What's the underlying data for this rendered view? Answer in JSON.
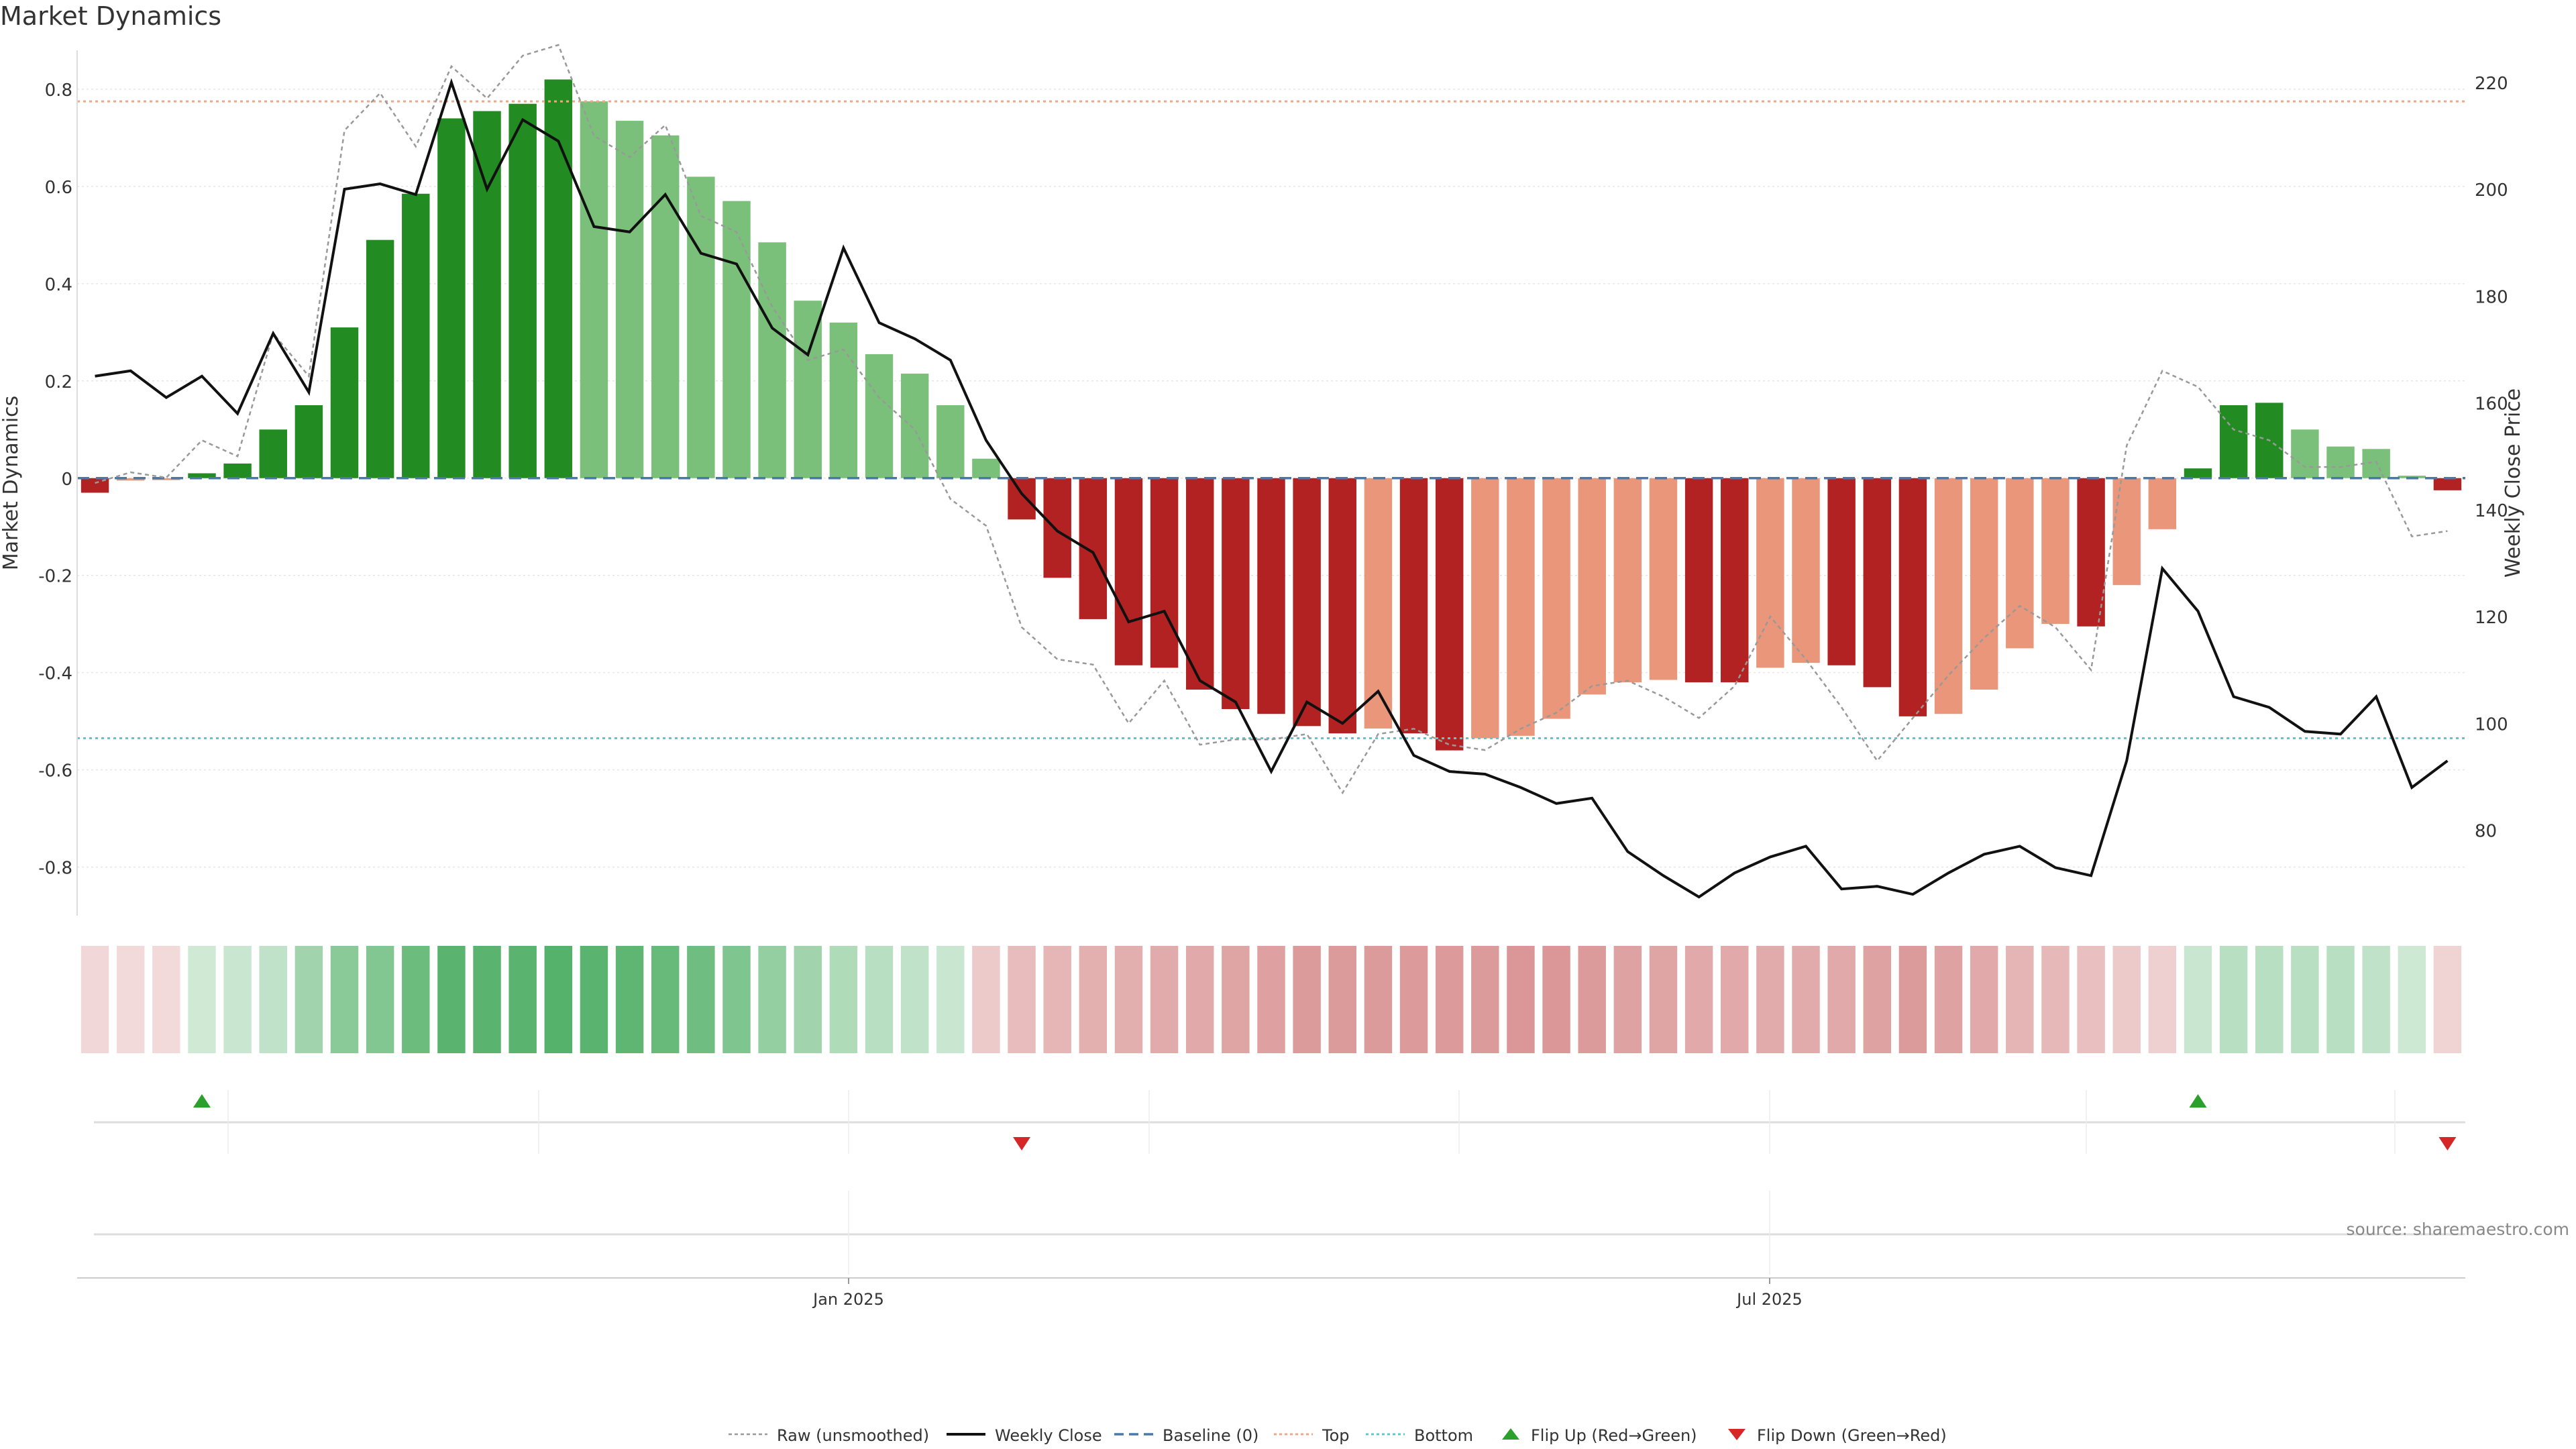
{
  "title": "Market Dynamics",
  "source": "source: sharemaestro.com",
  "chart_data": {
    "type": "bar",
    "ylabel": "Market Dynamics",
    "y2label": "Weekly Close Price",
    "ylim": [
      -0.9,
      0.88
    ],
    "y2lim": [
      64,
      226
    ],
    "yticks": [
      "0.8",
      "0.6",
      "0.4",
      "0.2",
      "0",
      "-0.2",
      "-0.4",
      "-0.6",
      "-0.8"
    ],
    "y2ticks": [
      "220",
      "200",
      "180",
      "160",
      "140",
      "120",
      "100",
      "80"
    ],
    "xticks": [
      "Jan 2025",
      "Jul 2025"
    ],
    "top_line": 0.775,
    "bottom_line": -0.535,
    "baseline": 0,
    "bars": [
      -0.03,
      -0.005,
      -0.004,
      0.01,
      0.03,
      0.1,
      0.15,
      0.31,
      0.49,
      0.585,
      0.74,
      0.755,
      0.77,
      0.82,
      0.775,
      0.735,
      0.705,
      0.62,
      0.57,
      0.485,
      0.365,
      0.32,
      0.255,
      0.215,
      0.15,
      0.04,
      -0.085,
      -0.205,
      -0.29,
      -0.385,
      -0.39,
      -0.435,
      -0.475,
      -0.485,
      -0.51,
      -0.525,
      -0.515,
      -0.525,
      -0.56,
      -0.535,
      -0.53,
      -0.495,
      -0.445,
      -0.42,
      -0.415,
      -0.42,
      -0.42,
      -0.39,
      -0.38,
      -0.385,
      -0.43,
      -0.49,
      -0.485,
      -0.435,
      -0.35,
      -0.3,
      -0.305,
      -0.22,
      -0.105,
      0.02,
      0.15,
      0.155,
      0.1,
      0.065,
      0.06,
      0.005,
      -0.025
    ],
    "bar_shade": [
      "dark",
      "light",
      "light",
      "dark",
      "dark",
      "dark",
      "dark",
      "dark",
      "dark",
      "dark",
      "dark",
      "dark",
      "dark",
      "dark",
      "light",
      "light",
      "light",
      "light",
      "light",
      "light",
      "light",
      "light",
      "light",
      "light",
      "light",
      "light",
      "dark",
      "dark",
      "dark",
      "dark",
      "dark",
      "dark",
      "dark",
      "dark",
      "dark",
      "dark",
      "light",
      "dark",
      "dark",
      "light",
      "light",
      "light",
      "light",
      "light",
      "light",
      "dark",
      "dark",
      "light",
      "light",
      "dark",
      "dark",
      "dark",
      "light",
      "light",
      "light",
      "light",
      "dark",
      "light",
      "light",
      "dark",
      "dark",
      "dark",
      "light",
      "light",
      "light",
      "light",
      "dark"
    ],
    "series": [
      {
        "name": "Weekly Close",
        "values": [
          165,
          166,
          161,
          165,
          158,
          173,
          162,
          200,
          201,
          199,
          220,
          200,
          213,
          209,
          193,
          192,
          199,
          188,
          186,
          174,
          169,
          189,
          175,
          172,
          168,
          153,
          143,
          136,
          132,
          119,
          121,
          108,
          104,
          91,
          104,
          100,
          106,
          94,
          91,
          90.5,
          88,
          85,
          86,
          76,
          71.5,
          67.5,
          72,
          75,
          77,
          69,
          69.5,
          68,
          72,
          75.5,
          77,
          73,
          71.5,
          93,
          129,
          121,
          105,
          103,
          98.5,
          98,
          105,
          88,
          93
        ]
      },
      {
        "name": "Raw (unsmoothed)",
        "values": [
          145,
          147,
          146,
          153,
          150,
          173,
          165,
          211,
          218,
          208,
          223,
          217,
          225,
          227,
          210,
          206,
          212,
          195,
          192,
          178,
          168,
          170,
          161,
          155,
          142,
          137,
          118,
          112,
          111,
          100,
          108,
          96,
          97,
          97,
          98,
          87,
          98,
          99,
          96,
          95,
          99,
          102,
          107,
          108,
          105,
          101,
          107,
          120,
          112,
          103,
          93,
          101,
          109,
          116,
          122,
          118,
          110,
          152,
          166,
          163,
          155,
          153,
          148,
          148,
          149,
          135,
          136
        ]
      }
    ],
    "momentum_strip": [
      -0.15,
      -0.12,
      -0.12,
      0.1,
      0.15,
      0.2,
      0.4,
      0.55,
      0.6,
      0.75,
      0.85,
      0.85,
      0.85,
      0.88,
      0.85,
      0.82,
      0.78,
      0.72,
      0.62,
      0.48,
      0.4,
      0.3,
      0.25,
      0.2,
      0.15,
      -0.25,
      -0.38,
      -0.42,
      -0.48,
      -0.5,
      -0.52,
      -0.55,
      -0.58,
      -0.62,
      -0.65,
      -0.65,
      -0.65,
      -0.68,
      -0.68,
      -0.65,
      -0.7,
      -0.7,
      -0.65,
      -0.6,
      -0.58,
      -0.55,
      -0.55,
      -0.52,
      -0.52,
      -0.55,
      -0.6,
      -0.65,
      -0.6,
      -0.55,
      -0.45,
      -0.4,
      -0.35,
      -0.25,
      -0.2,
      0.15,
      0.25,
      0.25,
      0.25,
      0.25,
      0.2,
      0.12,
      -0.18
    ],
    "flips_up": [
      3,
      59
    ],
    "flips_down": [
      26,
      66
    ],
    "legend": [
      "Raw (unsmoothed)",
      "Weekly Close",
      "Baseline (0)",
      "Top",
      "Bottom",
      "Flip Up (Red→Green)",
      "Flip Down (Green→Red)"
    ],
    "legend_placement": "bottom-center",
    "grid": true,
    "colors": {
      "green_dark": "#228b22",
      "green_light": "#7ac07a",
      "red_dark": "#b22222",
      "red_light": "#e9967a",
      "top_line": "#f4a582",
      "bottom_line": "#5bc8d0",
      "baseline": "#4a78a8",
      "flip_up": "#2ca02c",
      "flip_down": "#d62728"
    }
  }
}
